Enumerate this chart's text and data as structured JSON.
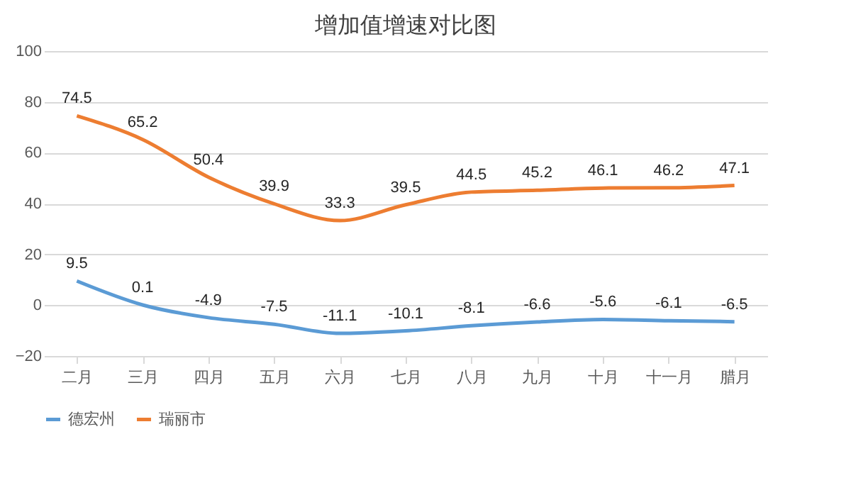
{
  "chart_data": {
    "type": "line",
    "title": "增加值增速对比图",
    "categories": [
      "二月",
      "三月",
      "四月",
      "五月",
      "六月",
      "七月",
      "八月",
      "九月",
      "十月",
      "十一月",
      "腊月"
    ],
    "series": [
      {
        "name": "德宏州",
        "color": "#5b9bd5",
        "values": [
          9.5,
          0.1,
          -4.9,
          -7.5,
          -11.1,
          -10.1,
          -8.1,
          -6.6,
          -5.6,
          -6.1,
          -6.5
        ]
      },
      {
        "name": "瑞丽市",
        "color": "#ed7d31",
        "values": [
          74.5,
          65.2,
          50.4,
          39.9,
          33.3,
          39.5,
          44.5,
          45.2,
          46.1,
          46.2,
          47.1
        ]
      }
    ],
    "ylim": [
      -20,
      100
    ],
    "yticks": [
      -20,
      0,
      20,
      40,
      60,
      80,
      100
    ],
    "grid": "y",
    "legend": "bottom",
    "data_labels": true,
    "marker": "none",
    "line_style": "solid"
  }
}
